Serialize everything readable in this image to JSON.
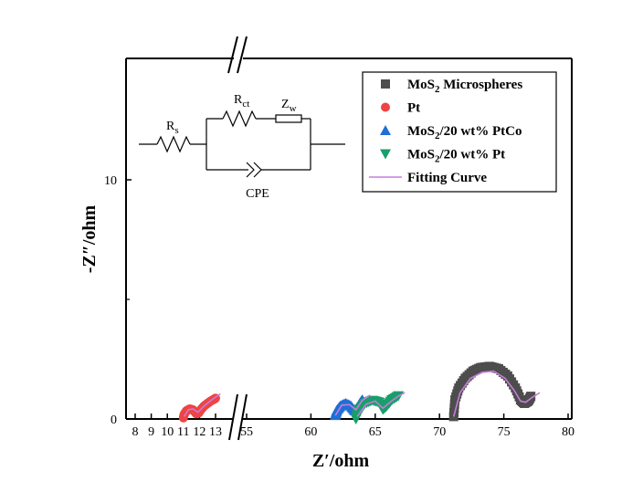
{
  "chart_data": {
    "type": "scatter",
    "xlabel": "Z′/ohm",
    "ylabel": "-Z″/ohm",
    "axis_break": {
      "left_segment": [
        8,
        13.3
      ],
      "right_segment": [
        54.3,
        80
      ]
    },
    "ylim": [
      0,
      14.5
    ],
    "x_ticks_left": [
      "8",
      "9",
      "10",
      "11",
      "12",
      "13"
    ],
    "x_ticks_right": [
      "55",
      "60",
      "65",
      "70",
      "75",
      "80"
    ],
    "y_ticks": [
      "0",
      "10"
    ],
    "legend": {
      "placement": "top-right",
      "entries": [
        {
          "label_main": "MoS",
          "label_sub": "2",
          "label_rest": " Microspheres",
          "marker": "square",
          "color": "#4d4d4d"
        },
        {
          "label_main": "Pt",
          "label_sub": "",
          "label_rest": "",
          "marker": "circle",
          "color": "#ee4444"
        },
        {
          "label_main": "MoS",
          "label_sub": "2",
          "label_rest": "/20 wt% PtCo",
          "marker": "triangle-up",
          "color": "#1f6fd6"
        },
        {
          "label_main": "MoS",
          "label_sub": "2",
          "label_rest": "/20 wt% Pt",
          "marker": "triangle-down",
          "color": "#1a9e6b"
        },
        {
          "label_main": "Fitting Curve",
          "label_sub": "",
          "label_rest": "",
          "marker": "line",
          "color": "#c77cdb"
        }
      ]
    },
    "series": [
      {
        "name": "MoS2 Microspheres",
        "color": "#4d4d4d",
        "marker": "square",
        "x": [
          71.1,
          71.2,
          71.5,
          72.0,
          72.6,
          73.2,
          73.9,
          74.6,
          75.3,
          75.9,
          76.3,
          76.6,
          76.9,
          77.1
        ],
        "y": [
          0.1,
          0.8,
          1.3,
          1.7,
          2.0,
          2.15,
          2.2,
          2.1,
          1.8,
          1.3,
          0.8,
          0.65,
          0.75,
          0.95
        ]
      },
      {
        "name": "Pt",
        "color": "#ee4444",
        "marker": "circle",
        "x": [
          11.0,
          11.05,
          11.2,
          11.4,
          11.6,
          11.8,
          11.95,
          12.1,
          12.3,
          12.5,
          12.7,
          12.9,
          13.0
        ],
        "y": [
          0.05,
          0.2,
          0.35,
          0.42,
          0.38,
          0.22,
          0.25,
          0.4,
          0.55,
          0.65,
          0.75,
          0.82,
          0.87
        ]
      },
      {
        "name": "MoS2/20 wt% PtCo",
        "color": "#1f6fd6",
        "marker": "triangle-up",
        "x": [
          61.9,
          62.0,
          62.3,
          62.7,
          63.1,
          63.4,
          63.6,
          63.8,
          64.0
        ],
        "y": [
          0.15,
          0.35,
          0.55,
          0.65,
          0.55,
          0.35,
          0.45,
          0.65,
          0.8
        ]
      },
      {
        "name": "MoS2/20 wt% Pt",
        "color": "#1a9e6b",
        "marker": "triangle-down",
        "x": [
          63.5,
          63.7,
          64.2,
          64.8,
          65.3,
          65.6,
          65.9,
          66.3,
          66.8
        ],
        "y": [
          0.0,
          0.35,
          0.65,
          0.78,
          0.7,
          0.4,
          0.55,
          0.8,
          0.97
        ]
      },
      {
        "name": "Fitting Curve",
        "color": "#c77cdb",
        "marker": "line",
        "segments": [
          {
            "x": [
              11.05,
              11.3,
              11.6,
              11.9,
              12.3,
              12.8,
              13.3
            ],
            "y": [
              0.1,
              0.38,
              0.42,
              0.28,
              0.55,
              0.82,
              1.05
            ]
          },
          {
            "x": [
              61.9,
              62.4,
              63.0,
              63.5,
              64.0,
              64.6
            ],
            "y": [
              0.15,
              0.58,
              0.6,
              0.38,
              0.78,
              1.0
            ]
          },
          {
            "x": [
              63.6,
              64.3,
              65.0,
              65.6,
              66.2,
              66.8,
              67.3
            ],
            "y": [
              0.1,
              0.62,
              0.75,
              0.45,
              0.72,
              0.95,
              1.1
            ]
          },
          {
            "x": [
              71.1,
              71.6,
              72.4,
              73.3,
              74.2,
              75.1,
              75.8,
              76.3,
              76.7,
              77.2,
              77.8
            ],
            "y": [
              0.1,
              1.1,
              1.7,
              1.95,
              2.0,
              1.7,
              1.2,
              0.75,
              0.7,
              0.9,
              1.1
            ]
          }
        ]
      }
    ]
  },
  "circuit": {
    "rs_label": "R",
    "rs_sub": "s",
    "rct_label": "R",
    "rct_sub": "ct",
    "zw_label": "Z",
    "zw_sub": "w",
    "cpe_label": "CPE"
  }
}
